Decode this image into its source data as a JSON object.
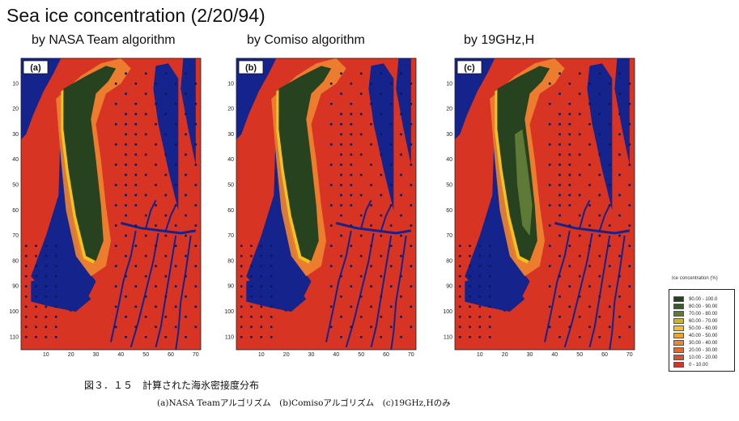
{
  "title": "Sea ice concentration (2/20/94)",
  "panels": [
    {
      "title": "by NASA Team algorithm",
      "tag": "(a)",
      "interior_ice": "high"
    },
    {
      "title": "by Comiso algorithm",
      "tag": "(b)",
      "interior_ice": "high"
    },
    {
      "title": "by 19GHz,H",
      "tag": "(c)",
      "interior_ice": "mid"
    }
  ],
  "legend": {
    "title": "Ice concentration (%)",
    "items": [
      {
        "label": "90.00 - 100.0",
        "color": "#27421f"
      },
      {
        "label": "80.00 - 90.00",
        "color": "#3f5a2a"
      },
      {
        "label": "70.00 - 80.00",
        "color": "#5f7a36"
      },
      {
        "label": "60.00 - 70.00",
        "color": "#cdb12f"
      },
      {
        "label": "50.00 - 60.00",
        "color": "#f4c21c"
      },
      {
        "label": "40.00 - 50.00",
        "color": "#f2a12a"
      },
      {
        "label": "30.00 - 40.00",
        "color": "#ee8531"
      },
      {
        "label": "20.00 - 30.00",
        "color": "#e8672f"
      },
      {
        "label": "10.00 - 20.00",
        "color": "#e14c2b"
      },
      {
        "label": "0 - 10.00",
        "color": "#d83423"
      }
    ]
  },
  "caption": {
    "line1": "図３．１５　計算された海氷密接度分布",
    "line2": "(a)NASA Teamアルゴリズム　(b)Comisoアルゴリズム　(c)19GHz,Hのみ"
  },
  "chart_data": {
    "type": "heatmap",
    "xlim": [
      0,
      72
    ],
    "ylim": [
      0,
      115
    ],
    "x_ticks": [
      "10",
      "20",
      "30",
      "40",
      "50",
      "60",
      "70"
    ],
    "y_ticks": [
      "10",
      "20",
      "30",
      "40",
      "50",
      "60",
      "70",
      "80",
      "90",
      "100",
      "110"
    ],
    "colors": {
      "land": "#15238c",
      "water": "#d83423",
      "marker": "#0b1760"
    }
  }
}
